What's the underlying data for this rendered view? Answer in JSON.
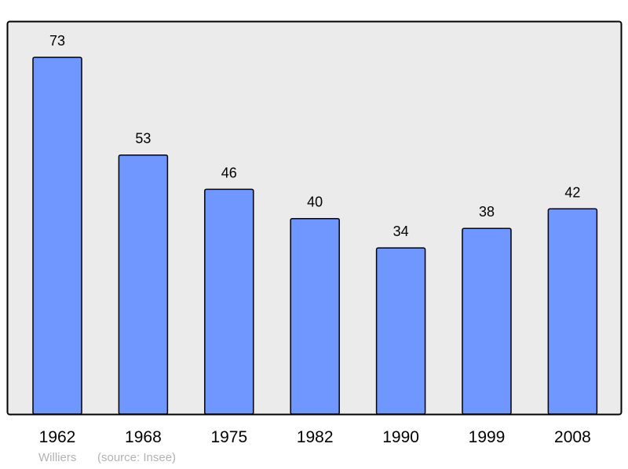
{
  "chart_data": {
    "type": "bar",
    "categories": [
      "1962",
      "1968",
      "1975",
      "1982",
      "1990",
      "1999",
      "2008"
    ],
    "values": [
      73,
      53,
      46,
      40,
      34,
      38,
      42
    ],
    "data_labels": [
      "73",
      "53",
      "46",
      "40",
      "34",
      "38",
      "42"
    ],
    "title": "",
    "xlabel": "",
    "ylabel": "",
    "ylim": [
      0,
      80.4
    ],
    "grid": false,
    "bar_color": "#7097ff",
    "plot_background": "#ebebeb"
  },
  "footer": {
    "name": "Williers",
    "source": "(source: Insee)"
  }
}
